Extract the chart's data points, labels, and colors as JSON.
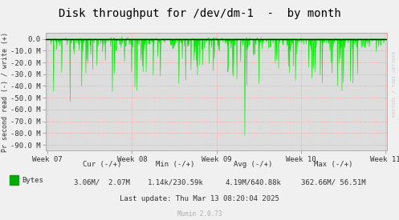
{
  "title": "Disk throughput for /dev/dm-1  -  by month",
  "ylabel": "Pr second read (-) / write (+)",
  "fig_bg_color": "#f0f0f0",
  "plot_bg_color": "#dddddd",
  "grid_color": "#ff8888",
  "grid_linestyle": ":",
  "ylim": [
    -95,
    5
  ],
  "ytick_vals": [
    0,
    -10,
    -20,
    -30,
    -40,
    -50,
    -60,
    -70,
    -80,
    -90
  ],
  "ytick_labels": [
    "0.0",
    "-10.0 M",
    "-20.0 M",
    "-30.0 M",
    "-40.0 M",
    "-50.0 M",
    "-60.0 M",
    "-70.0 M",
    "-80.0 M",
    "-90.0 M"
  ],
  "xtick_labels": [
    "Week 07",
    "Week 08",
    "Week 09",
    "Week 10",
    "Week 11"
  ],
  "xtick_positions": [
    0.0,
    0.25,
    0.5,
    0.75,
    1.0
  ],
  "line_color": "#00ee00",
  "zero_line_color": "#000000",
  "legend_label": "Bytes",
  "legend_color": "#00aa00",
  "footer_col_labels": [
    "Cur (-/+)",
    "Min (-/+)",
    "Avg (-/+)",
    "Max (-/+)"
  ],
  "footer_col_vals": [
    "3.06M/  2.07M",
    "1.14k/230.59k",
    "4.19M/640.88k",
    "362.66M/ 56.51M"
  ],
  "last_update": "Last update: Thu Mar 13 08:20:04 2025",
  "munin_version": "Munin 2.0.73",
  "watermark": "RRDTOOL / TOBI OETIKER",
  "title_fontsize": 10,
  "axis_fontsize": 6.5,
  "footer_fontsize": 6.5,
  "num_points": 1200
}
